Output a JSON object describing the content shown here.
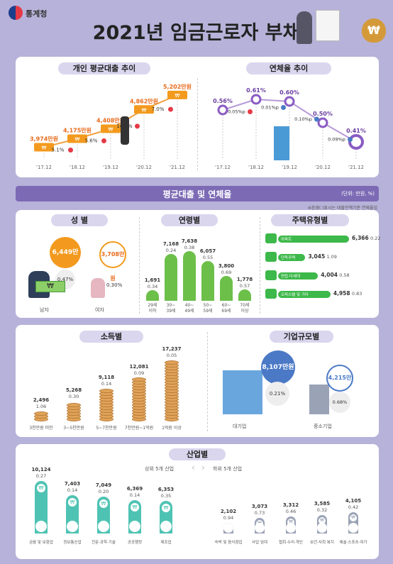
{
  "header": {
    "logo_text": "통계청",
    "title": "2021년 임금근로자 부채"
  },
  "loan_trend": {
    "title": "개인 평균대출 추이",
    "years": [
      "'17.12",
      "'18.12",
      "'19.12",
      "'20.12",
      "'21.12"
    ],
    "values": [
      "3,974만원",
      "4,175만원",
      "4,408만원",
      "4,862만원",
      "5,202만원"
    ],
    "growth": [
      "5.1%",
      "5.6%",
      "10.3%",
      "7.0%"
    ]
  },
  "delinquency_trend": {
    "title": "연체율 추이",
    "years": [
      "'17.12",
      "'18.12",
      "'19.12",
      "'20.12",
      "'21.12"
    ],
    "values": [
      "0.56%",
      "0.61%",
      "0.60%",
      "0.50%",
      "0.41%"
    ],
    "changes": [
      "0.05%p",
      "0.01%p",
      "0.10%p",
      "0.09%p"
    ]
  },
  "section2": {
    "title": "평균대출 및 연체율",
    "unit": "(단위: 만원, %)",
    "note": "※음영(    )표시는 대출잔액기준 연체율임"
  },
  "gender": {
    "title": "성 별",
    "items": [
      {
        "label": "남자",
        "value": "6,449만원",
        "rate": "0.47%"
      },
      {
        "label": "여자",
        "value": "3,708만원",
        "rate": "0.30%"
      }
    ]
  },
  "age": {
    "title": "연령별",
    "items": [
      {
        "label": "29세\n이하",
        "value": "1,691",
        "rate": "0.34"
      },
      {
        "label": "30~\n39세",
        "value": "7,168",
        "rate": "0.24"
      },
      {
        "label": "40~\n49세",
        "value": "7,638",
        "rate": "0.38"
      },
      {
        "label": "50~\n59세",
        "value": "6,057",
        "rate": "0.55"
      },
      {
        "label": "60~\n69세",
        "value": "3,800",
        "rate": "0.69"
      },
      {
        "label": "70세\n이상",
        "value": "1,778",
        "rate": "0.57"
      }
    ]
  },
  "housing": {
    "title": "주택유형별",
    "items": [
      {
        "label": "아파트",
        "value": "6,366",
        "rate": "0.22"
      },
      {
        "label": "단독주택",
        "value": "3,045",
        "rate": "1.09"
      },
      {
        "label": "연립·다세대",
        "value": "4,004",
        "rate": "0.58"
      },
      {
        "label": "오피스텔 및 기타",
        "value": "4,958",
        "rate": "0.83"
      }
    ]
  },
  "income": {
    "title": "소득별",
    "items": [
      {
        "label": "3천만원 미만",
        "value": "2,496",
        "rate": "1.06"
      },
      {
        "label": "3~5천만원",
        "value": "5,268",
        "rate": "0.30"
      },
      {
        "label": "5~7천만원",
        "value": "9,118",
        "rate": "0.14"
      },
      {
        "label": "7천만원~1억원",
        "value": "12,081",
        "rate": "0.09"
      },
      {
        "label": "1억원 이상",
        "value": "17,237",
        "rate": "0.05"
      }
    ]
  },
  "company": {
    "title": "기업규모별",
    "items": [
      {
        "label": "대기업",
        "value": "8,107만원",
        "rate": "0.21%"
      },
      {
        "label": "중소기업",
        "value": "4,215만원",
        "rate": "0.68%"
      }
    ]
  },
  "industry": {
    "title": "산업별",
    "top_label": "상위 5개 산업",
    "bottom_label": "하위 5개 산업",
    "top": [
      {
        "label": "금융 및 보험업",
        "value": "10,124",
        "rate": "0.27"
      },
      {
        "label": "정보통신업",
        "value": "7,403",
        "rate": "0.14"
      },
      {
        "label": "전문·과학·기술",
        "value": "7,049",
        "rate": "0.20"
      },
      {
        "label": "공공행정",
        "value": "6,369",
        "rate": "0.14"
      },
      {
        "label": "제조업",
        "value": "6,353",
        "rate": "0.35"
      }
    ],
    "bottom": [
      {
        "label": "숙박 및 음식점업",
        "value": "2,102",
        "rate": "0.94"
      },
      {
        "label": "사업 임대",
        "value": "3,073",
        "rate": "0.73"
      },
      {
        "label": "협회·수리·개인",
        "value": "3,312",
        "rate": "0.46"
      },
      {
        "label": "보건·사회 복지",
        "value": "3,585",
        "rate": "0.32"
      },
      {
        "label": "예술·스포츠·여가",
        "value": "4,105",
        "rate": "0.42"
      }
    ]
  }
}
